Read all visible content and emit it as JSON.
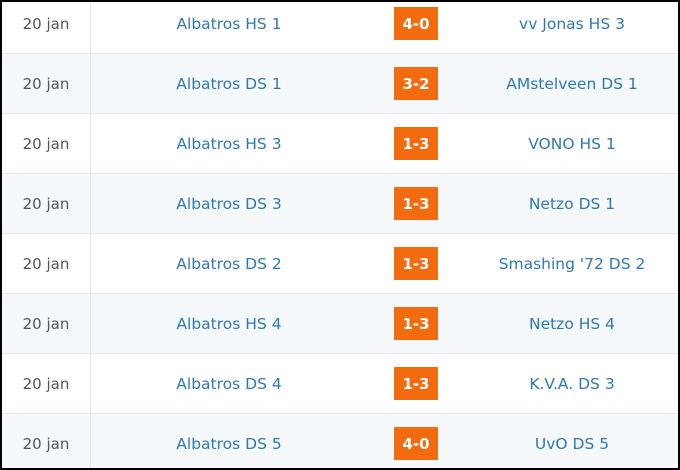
{
  "matches": [
    {
      "date": "20 jan",
      "home": "Albatros HS 1",
      "score": "4-0",
      "away": "vv Jonas HS 3"
    },
    {
      "date": "20 jan",
      "home": "Albatros DS 1",
      "score": "3-2",
      "away": "AMstelveen DS 1"
    },
    {
      "date": "20 jan",
      "home": "Albatros HS 3",
      "score": "1-3",
      "away": "VONO HS 1"
    },
    {
      "date": "20 jan",
      "home": "Albatros DS 3",
      "score": "1-3",
      "away": "Netzo DS 1"
    },
    {
      "date": "20 jan",
      "home": "Albatros DS 2",
      "score": "1-3",
      "away": "Smashing '72 DS 2"
    },
    {
      "date": "20 jan",
      "home": "Albatros HS 4",
      "score": "1-3",
      "away": "Netzo HS 4"
    },
    {
      "date": "20 jan",
      "home": "Albatros DS 4",
      "score": "1-3",
      "away": "K.V.A. DS 3"
    },
    {
      "date": "20 jan",
      "home": "Albatros DS 5",
      "score": "4-0",
      "away": "UvO DS 5"
    }
  ],
  "colors": {
    "link": "#2f78b8",
    "score_badge": "#f26b0f",
    "row_alt": "#f5f9fc"
  }
}
